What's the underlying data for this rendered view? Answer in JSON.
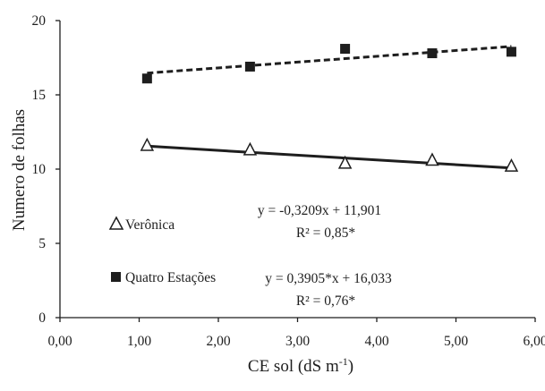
{
  "chart_data": {
    "type": "scatter",
    "xlabel": "CE sol (dS m",
    "xlabel_sup": "-1",
    "xlabel_close": ")",
    "ylabel": "Numero de folhas",
    "xlim": [
      0,
      6
    ],
    "ylim": [
      0,
      20
    ],
    "x_ticks": [
      "0,00",
      "1,00",
      "2,00",
      "3,00",
      "4,00",
      "5,00",
      "6,00"
    ],
    "y_ticks": [
      "0",
      "5",
      "10",
      "15",
      "20"
    ],
    "grid": false,
    "series": [
      {
        "name": "Verônica",
        "marker": "open-triangle",
        "line_style": "solid",
        "color": "#1e1e1e",
        "x": [
          1.1,
          2.4,
          3.6,
          4.7,
          5.7
        ],
        "y": [
          11.6,
          11.3,
          10.4,
          10.6,
          10.2
        ],
        "fit": {
          "slope": -0.3209,
          "intercept": 11.901
        },
        "equation": "y = -0,3209x  + 11,901",
        "r2": "R² = 0,85*"
      },
      {
        "name": "Quatro Estações",
        "marker": "filled-square",
        "line_style": "dashed",
        "color": "#1e1e1e",
        "x": [
          1.1,
          2.4,
          3.6,
          4.7,
          5.7
        ],
        "y": [
          16.1,
          16.9,
          18.1,
          17.8,
          17.9
        ],
        "fit": {
          "slope": 0.3905,
          "intercept": 16.033
        },
        "equation": "y = 0,3905*x  + 16,033",
        "r2": "R² = 0,76*"
      }
    ],
    "legend_placement": "inside-left"
  }
}
